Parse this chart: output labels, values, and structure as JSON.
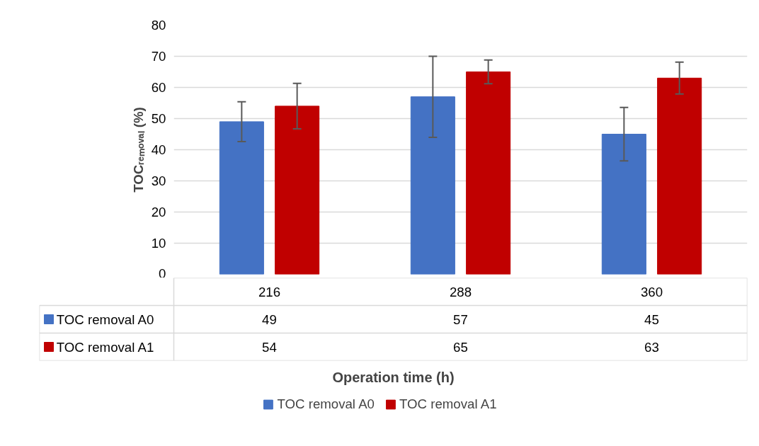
{
  "chart_data": {
    "type": "bar",
    "xlabel": "Operation time (h)",
    "ylabel": "TOCᵣₑₘₒᵥₐₗ (%)",
    "categories": [
      "216",
      "288",
      "360"
    ],
    "series": [
      {
        "name": "TOC removal A0",
        "color": "#4472c4",
        "values": [
          49,
          57,
          45
        ],
        "errors": [
          6.4,
          13,
          8.6
        ]
      },
      {
        "name": "TOC removal A1",
        "color": "#c00000",
        "values": [
          54,
          65,
          63
        ],
        "errors": [
          7.3,
          3.8,
          5.1
        ]
      }
    ],
    "ylim": [
      0,
      80
    ],
    "yticks": [
      0,
      10,
      20,
      30,
      40,
      50,
      60,
      70,
      80
    ],
    "grid": "y",
    "legend": "bottom",
    "data_labels": true
  }
}
